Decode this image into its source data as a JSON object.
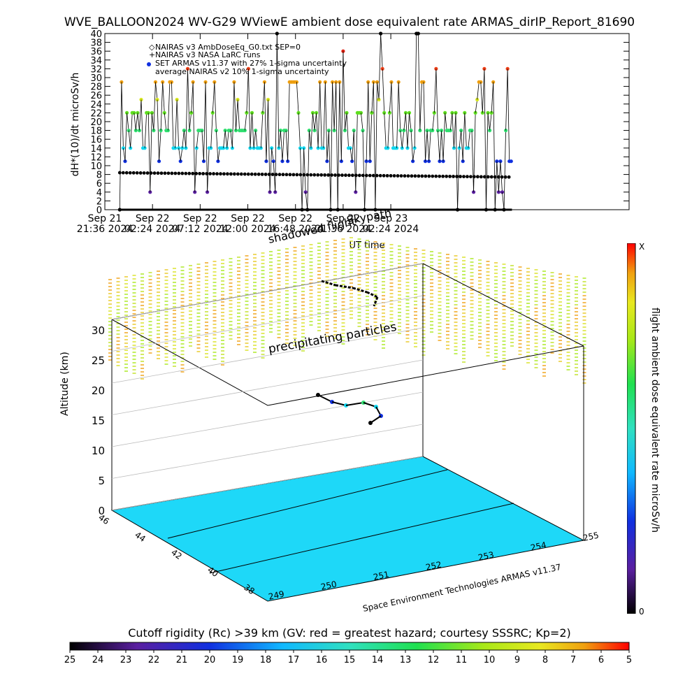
{
  "title": "WVE_BALLOON2024 WV-G29 WViewE ambient dose equivalent rate ARMAS_dirIP_Report_81690",
  "top_panel": {
    "ylabel": "dH*(10)/dt microSv/h",
    "xlabel": "UT time",
    "legend": [
      "NAIRAS v3 AmbDoseEq_G0.txt SEP=0",
      "NAIRAS v3 NASA LaRC runs",
      "SET ARMAS v11.37 with 27% 1-sigma uncertainty",
      "average NAIRAS v2 10% 1-sigma uncertainty"
    ],
    "legend_markers": [
      "◇",
      "+",
      "●",
      ""
    ]
  },
  "annotations": {
    "shadowed": "shadowed flight",
    "skypath": "Skypath",
    "precipitating": "precipitating particles",
    "credit": "Space Environment Technologies ARMAS v11.37"
  },
  "colorbar": {
    "label": "flight ambient dose equivalent rate microSv/h",
    "top": "X",
    "bottom": "0"
  },
  "cutoff_bar": {
    "caption": "Cutoff rigidity (Rc) >39 km (GV: red = greatest hazard; courtesy SSSRC; Kp=2)",
    "ticks": [
      "25",
      "24",
      "23",
      "22",
      "21",
      "20",
      "19",
      "18",
      "17",
      "16",
      "15",
      "14",
      "13",
      "12",
      "11",
      "10",
      "9",
      "8",
      "7",
      "6",
      "5"
    ]
  },
  "chart_data": [
    {
      "type": "scatter",
      "title": "WVE_BALLOON2024 WV-G29 WViewE ambient dose equivalent rate ARMAS_dirIP_Report_81690",
      "xlabel": "UT time",
      "ylabel": "dH*(10)/dt microSv/h",
      "xlim_hours": [
        0,
        52.8
      ],
      "ylim": [
        0,
        40
      ],
      "y_ticks": [
        "0",
        "2",
        "4",
        "6",
        "8",
        "10",
        "12",
        "14",
        "16",
        "18",
        "20",
        "22",
        "24",
        "26",
        "28",
        "30",
        "32",
        "34",
        "36",
        "38",
        "40"
      ],
      "x_ticks": [
        {
          "t": 0,
          "line1": "Sep 21",
          "line2": "21:36 2024"
        },
        {
          "t": 4.8,
          "line1": "Sep 22",
          "line2": "02:24 2024"
        },
        {
          "t": 9.6,
          "line1": "Sep 22",
          "line2": "07:12 2024"
        },
        {
          "t": 14.4,
          "line1": "Sep 22",
          "line2": "12:00 2024"
        },
        {
          "t": 19.2,
          "line1": "Sep 22",
          "line2": "16:48 2024"
        },
        {
          "t": 24.0,
          "line1": "Sep 22",
          "line2": "21:36 2024"
        },
        {
          "t": 28.8,
          "line1": "Sep 23",
          "line2": "02:24 2024"
        }
      ],
      "dose_levels": [
        0,
        4,
        8,
        11,
        14,
        18,
        22,
        25,
        29,
        32,
        36,
        40
      ],
      "nairas_average": {
        "start": 8.4,
        "end": 7.4,
        "uncertainty": "10%"
      },
      "grid": true
    },
    {
      "type": "scatter",
      "subtype": "3d-trajectory",
      "zlabel": "Altitude (km)",
      "z_ticks": [
        "0",
        "5",
        "10",
        "15",
        "20",
        "25",
        "30"
      ],
      "lat_ticks": [
        "46",
        "44",
        "42",
        "40",
        "38"
      ],
      "lon_ticks": [
        "249",
        "250",
        "251",
        "252",
        "253",
        "254",
        "255"
      ]
    }
  ],
  "colors": {
    "dose_scale": [
      "#000000",
      "#5a1fa0",
      "#1030e0",
      "#10b8ff",
      "#30e0c0",
      "#20e050",
      "#a8e818",
      "#e8e820",
      "#f0a010",
      "#f04018",
      "#ff0000"
    ],
    "ground": "#1ed8f8",
    "avg_line": "#000000"
  }
}
